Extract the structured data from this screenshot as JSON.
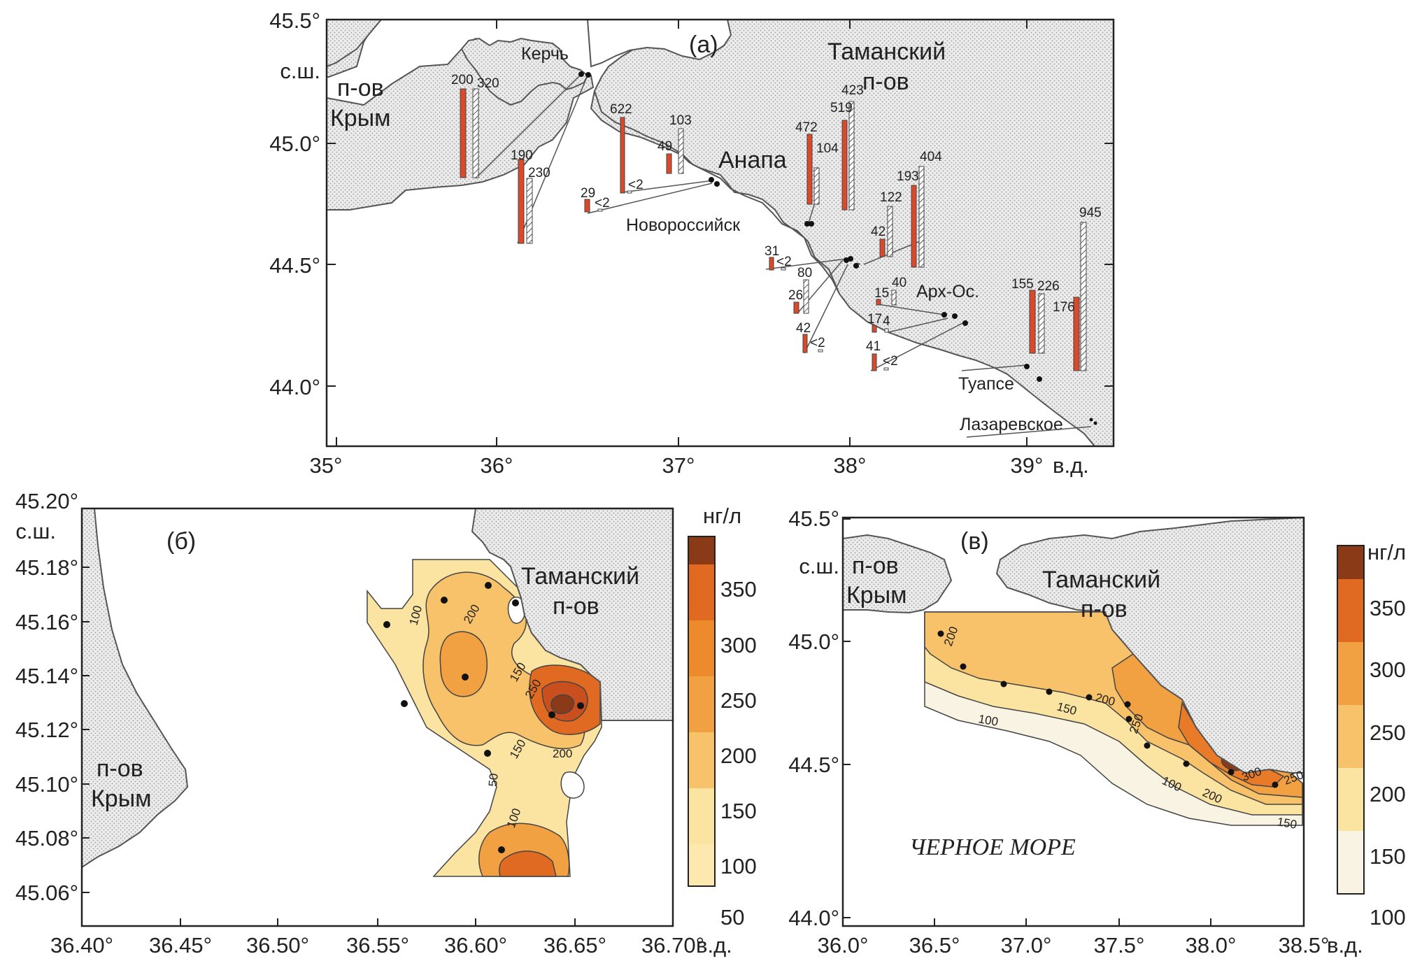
{
  "colors": {
    "land": "#e8e8e8",
    "bar_red": "#d9492a",
    "scale": [
      "#fbe3a1",
      "#f7c26a",
      "#f2a142",
      "#ed8a2c",
      "#e06a22",
      "#8a3a17"
    ],
    "scale_v": [
      "#f8f3e3",
      "#fbe3a1",
      "#f7c26a",
      "#f2a142",
      "#e97a27",
      "#8a3a17"
    ]
  },
  "panel_a": {
    "label": "(а)",
    "lat_ticks": [
      "45.5°",
      "45.0°",
      "44.5°",
      "44.0°"
    ],
    "lat_unit": "с.ш.",
    "lon_ticks": [
      "35°",
      "36°",
      "37°",
      "38°",
      "39°"
    ],
    "lon_unit": "в.д.",
    "places": {
      "crimea_1": "п-ов",
      "crimea_2": "Крым",
      "kerch": "Керчь",
      "taman_1": "Таманский",
      "taman_2": "п-ов",
      "anapa": "Анапа",
      "novorossiysk": "Новороссийск",
      "arkh_os": "Арх-Ос.",
      "tuapse": "Туапсе",
      "lazarevskoe": "Лазаревское"
    },
    "bar_pairs": [
      {
        "red": "200",
        "hatch": "320"
      },
      {
        "red": "190",
        "hatch": "230"
      },
      {
        "red": "622",
        "hatch": "<2"
      },
      {
        "red": "49",
        "hatch": "103"
      },
      {
        "red": "29",
        "hatch": "<2"
      },
      {
        "red": "472",
        "hatch": "104"
      },
      {
        "red": "519",
        "hatch": "423"
      },
      {
        "red": "193",
        "hatch": "404"
      },
      {
        "red": "42",
        "hatch": "122"
      },
      {
        "red": "31",
        "hatch": "<2"
      },
      {
        "red": "26",
        "hatch": "80"
      },
      {
        "red": "42",
        "hatch": "<2"
      },
      {
        "red": "15",
        "hatch": "40"
      },
      {
        "red": "17",
        "hatch": "4"
      },
      {
        "red": "41",
        "hatch": "<2"
      },
      {
        "red": "155",
        "hatch": "226"
      },
      {
        "red": "176",
        "hatch": "945"
      }
    ]
  },
  "panel_b": {
    "label": "(б)",
    "lat_ticks": [
      "45.20°",
      "45.18°",
      "45.16°",
      "45.14°",
      "45.12°",
      "45.10°",
      "45.08°",
      "45.06°"
    ],
    "lat_unit": "с.ш.",
    "lon_ticks": [
      "36.40°",
      "36.45°",
      "36.50°",
      "36.55°",
      "36.60°",
      "36.65°",
      "36.70°"
    ],
    "lon_unit": "в.д.",
    "places": {
      "taman_1": "Таманский",
      "taman_2": "п-ов",
      "crimea_1": "п-ов",
      "crimea_2": "Крым"
    },
    "contours": [
      "100",
      "200",
      "150",
      "250",
      "150",
      "200",
      "50",
      "100"
    ],
    "scale_unit": "нг/л",
    "scale_ticks": [
      "350",
      "300",
      "250",
      "200",
      "150",
      "100",
      "50"
    ]
  },
  "panel_v": {
    "label": "(в)",
    "lat_ticks": [
      "45.5°",
      "45.0°",
      "44.5°",
      "44.0°"
    ],
    "lat_unit": "с.ш.",
    "lon_ticks": [
      "36.0°",
      "36.5°",
      "37.0°",
      "37.5°",
      "38.0°",
      "38.5°"
    ],
    "lon_unit": "в.д.",
    "places": {
      "crimea_1": "п-ов",
      "crimea_2": "Крым",
      "taman_1": "Таманский",
      "taman_2": "п-ов",
      "sea": "ЧЕРНОЕ МОРЕ"
    },
    "contours": [
      "200",
      "200",
      "150",
      "100",
      "250",
      "100",
      "200",
      "300",
      "250",
      "150"
    ],
    "scale_unit": "нг/л",
    "scale_ticks": [
      "350",
      "300",
      "250",
      "200",
      "150",
      "100"
    ]
  }
}
